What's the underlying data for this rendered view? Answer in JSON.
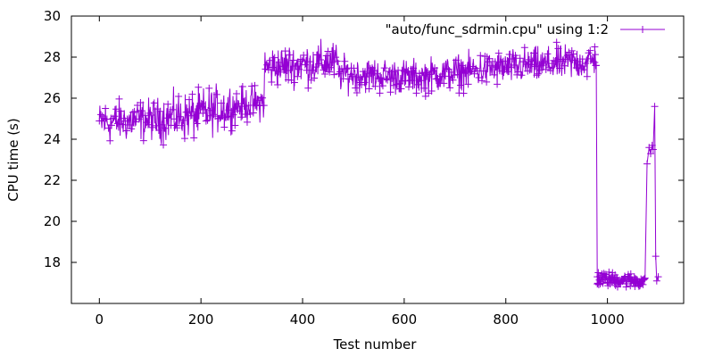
{
  "chart_data": {
    "type": "line",
    "title": "",
    "xlabel": "Test number",
    "ylabel": "CPU time (s)",
    "xlim": [
      -55,
      1150
    ],
    "ylim": [
      16,
      30
    ],
    "xticks": [
      0,
      200,
      400,
      600,
      800,
      1000
    ],
    "yticks": [
      18,
      20,
      22,
      24,
      26,
      28,
      30
    ],
    "grid": false,
    "legend_position": "top-right",
    "series": [
      {
        "name": "\"auto/func_sdrmin.cpu\" using 1:2",
        "color": "#9400d3",
        "marker": "plus",
        "x_range": [
          0,
          1100
        ],
        "segments": [
          {
            "x": [
              0,
              120
            ],
            "mean_y": [
              24.8,
              25.0
            ],
            "spread": 0.7
          },
          {
            "x": [
              120,
              200
            ],
            "mean_y": [
              25.0,
              25.2
            ],
            "spread": 0.8
          },
          {
            "x": [
              200,
              260
            ],
            "mean_y": [
              25.3,
              25.6
            ],
            "spread": 0.8
          },
          {
            "x": [
              260,
              325
            ],
            "mean_y": [
              25.6,
              25.8
            ],
            "spread": 0.6
          },
          {
            "x": [
              325,
              470
            ],
            "mean_y": [
              27.5,
              27.8
            ],
            "spread": 0.7
          },
          {
            "x": [
              470,
              640
            ],
            "mean_y": [
              27.2,
              27.0
            ],
            "spread": 0.6
          },
          {
            "x": [
              640,
              800
            ],
            "mean_y": [
              27.1,
              27.5
            ],
            "spread": 0.6
          },
          {
            "x": [
              800,
              978
            ],
            "mean_y": [
              27.5,
              27.8
            ],
            "spread": 0.6
          },
          {
            "x": [
              980,
              1065
            ],
            "mean_y": [
              17.2,
              17.1
            ],
            "spread": 0.25
          },
          {
            "x": [
              1065,
              1075
            ],
            "mean_y": [
              17.1,
              17.1
            ],
            "spread": 0.2
          }
        ],
        "points": [
          {
            "x": 975,
            "y": 28.5
          },
          {
            "x": 978,
            "y": 27.6
          },
          {
            "x": 980,
            "y": 17.3
          },
          {
            "x": 1078,
            "y": 22.8
          },
          {
            "x": 1082,
            "y": 23.6
          },
          {
            "x": 1085,
            "y": 23.3
          },
          {
            "x": 1088,
            "y": 23.7
          },
          {
            "x": 1090,
            "y": 23.5
          },
          {
            "x": 1093,
            "y": 25.6
          },
          {
            "x": 1095,
            "y": 18.3
          },
          {
            "x": 1097,
            "y": 17.1
          },
          {
            "x": 1100,
            "y": 17.3
          }
        ]
      }
    ]
  }
}
